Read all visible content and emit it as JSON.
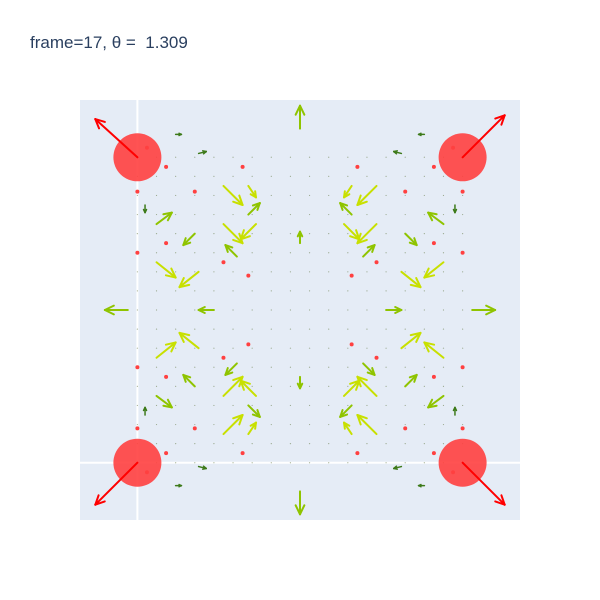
{
  "chart_data": {
    "type": "vector-field",
    "title": "frame=17, θ =  1.309",
    "xlim": [
      -0.3,
      2.0
    ],
    "ylim": [
      -0.3,
      1.9
    ],
    "grid": true,
    "zero_lines": true,
    "colors": {
      "plot_bg": "#e5ecf6",
      "grid": "#ffffff",
      "title": "#2a3f5f",
      "charge": "#ff4040",
      "charge_arrow": "#ff0000",
      "field_strong": "#c8e000",
      "field_mid": "#8fc400",
      "field_weak": "#3d7a1a"
    },
    "charges": [
      {
        "x": 0,
        "y": 0,
        "arrow": [
          -0.22,
          -0.22
        ]
      },
      {
        "x": 1.7,
        "y": 0,
        "arrow": [
          0.22,
          -0.22
        ]
      },
      {
        "x": 0,
        "y": 1.6,
        "arrow": [
          -0.22,
          0.2
        ]
      },
      {
        "x": 1.7,
        "y": 1.6,
        "arrow": [
          0.22,
          0.22
        ]
      }
    ],
    "field_arrows": [
      {
        "x": 0.85,
        "y": 1.75,
        "u": 0,
        "v": 0.12,
        "level": "mid"
      },
      {
        "x": 0.85,
        "y": 1.15,
        "u": 0,
        "v": 0.06,
        "level": "mid"
      },
      {
        "x": 0.85,
        "y": 0.45,
        "u": 0,
        "v": -0.06,
        "level": "mid"
      },
      {
        "x": 0.85,
        "y": -0.15,
        "u": 0,
        "v": -0.12,
        "level": "mid"
      },
      {
        "x": -0.05,
        "y": 0.8,
        "u": -0.12,
        "v": 0,
        "level": "mid"
      },
      {
        "x": 0.4,
        "y": 0.8,
        "u": -0.08,
        "v": 0,
        "level": "mid"
      },
      {
        "x": 1.3,
        "y": 0.8,
        "u": 0.08,
        "v": 0,
        "level": "mid"
      },
      {
        "x": 1.75,
        "y": 0.8,
        "u": 0.12,
        "v": 0,
        "level": "mid"
      },
      {
        "x": 0.45,
        "y": 1.45,
        "u": 0.1,
        "v": -0.1,
        "level": "strong"
      },
      {
        "x": 1.25,
        "y": 1.45,
        "u": -0.1,
        "v": -0.1,
        "level": "strong"
      },
      {
        "x": 0.45,
        "y": 0.15,
        "u": 0.1,
        "v": 0.1,
        "level": "strong"
      },
      {
        "x": 1.25,
        "y": 0.15,
        "u": -0.1,
        "v": 0.1,
        "level": "strong"
      },
      {
        "x": 0.45,
        "y": 1.25,
        "u": 0.1,
        "v": -0.1,
        "level": "strong"
      },
      {
        "x": 0.62,
        "y": 1.25,
        "u": -0.08,
        "v": -0.08,
        "level": "strong"
      },
      {
        "x": 1.08,
        "y": 1.25,
        "u": 0.08,
        "v": -0.08,
        "level": "strong"
      },
      {
        "x": 1.25,
        "y": 1.25,
        "u": -0.1,
        "v": -0.1,
        "level": "strong"
      },
      {
        "x": 0.45,
        "y": 0.35,
        "u": 0.1,
        "v": 0.1,
        "level": "strong"
      },
      {
        "x": 0.62,
        "y": 0.35,
        "u": -0.08,
        "v": 0.08,
        "level": "strong"
      },
      {
        "x": 1.08,
        "y": 0.35,
        "u": 0.08,
        "v": 0.08,
        "level": "strong"
      },
      {
        "x": 1.25,
        "y": 0.35,
        "u": -0.1,
        "v": 0.1,
        "level": "strong"
      },
      {
        "x": 0.1,
        "y": 1.05,
        "u": 0.1,
        "v": -0.08,
        "level": "strong"
      },
      {
        "x": 0.32,
        "y": 1.0,
        "u": -0.1,
        "v": -0.08,
        "level": "strong"
      },
      {
        "x": 1.38,
        "y": 1.0,
        "u": 0.1,
        "v": -0.08,
        "level": "strong"
      },
      {
        "x": 1.6,
        "y": 1.05,
        "u": -0.1,
        "v": -0.08,
        "level": "strong"
      },
      {
        "x": 0.1,
        "y": 0.55,
        "u": 0.1,
        "v": 0.08,
        "level": "strong"
      },
      {
        "x": 0.32,
        "y": 0.6,
        "u": -0.1,
        "v": 0.08,
        "level": "strong"
      },
      {
        "x": 1.38,
        "y": 0.6,
        "u": 0.1,
        "v": 0.08,
        "level": "strong"
      },
      {
        "x": 1.6,
        "y": 0.55,
        "u": -0.1,
        "v": 0.08,
        "level": "strong"
      },
      {
        "x": 0.1,
        "y": 1.25,
        "u": 0.08,
        "v": 0.06,
        "level": "mid"
      },
      {
        "x": 0.3,
        "y": 1.2,
        "u": -0.06,
        "v": -0.06,
        "level": "mid"
      },
      {
        "x": 1.4,
        "y": 1.2,
        "u": 0.06,
        "v": -0.06,
        "level": "mid"
      },
      {
        "x": 1.6,
        "y": 1.25,
        "u": -0.08,
        "v": 0.06,
        "level": "mid"
      },
      {
        "x": 0.1,
        "y": 0.35,
        "u": 0.08,
        "v": -0.06,
        "level": "mid"
      },
      {
        "x": 0.3,
        "y": 0.4,
        "u": -0.06,
        "v": 0.06,
        "level": "mid"
      },
      {
        "x": 1.4,
        "y": 0.4,
        "u": 0.06,
        "v": 0.06,
        "level": "mid"
      },
      {
        "x": 1.6,
        "y": 0.35,
        "u": -0.08,
        "v": -0.06,
        "level": "mid"
      },
      {
        "x": 0.58,
        "y": 1.3,
        "u": 0.06,
        "v": 0.06,
        "level": "mid"
      },
      {
        "x": 1.12,
        "y": 1.3,
        "u": -0.06,
        "v": 0.06,
        "level": "mid"
      },
      {
        "x": 0.58,
        "y": 0.3,
        "u": 0.06,
        "v": -0.06,
        "level": "mid"
      },
      {
        "x": 1.12,
        "y": 0.3,
        "u": -0.06,
        "v": -0.06,
        "level": "mid"
      },
      {
        "x": 0.52,
        "y": 1.08,
        "u": -0.06,
        "v": 0.06,
        "level": "mid"
      },
      {
        "x": 1.18,
        "y": 1.08,
        "u": 0.06,
        "v": 0.06,
        "level": "mid"
      },
      {
        "x": 0.52,
        "y": 0.52,
        "u": -0.06,
        "v": -0.06,
        "level": "mid"
      },
      {
        "x": 1.18,
        "y": 0.52,
        "u": 0.06,
        "v": -0.06,
        "level": "mid"
      },
      {
        "x": 0.58,
        "y": 0.15,
        "u": 0.04,
        "v": 0.06,
        "level": "strong"
      },
      {
        "x": 1.12,
        "y": 0.15,
        "u": -0.04,
        "v": 0.06,
        "level": "strong"
      },
      {
        "x": 0.58,
        "y": 1.45,
        "u": 0.04,
        "v": -0.06,
        "level": "strong"
      },
      {
        "x": 1.12,
        "y": 1.45,
        "u": -0.04,
        "v": -0.06,
        "level": "strong"
      },
      {
        "x": 0.32,
        "y": 1.62,
        "u": 0.04,
        "v": 0.01,
        "level": "weak"
      },
      {
        "x": 1.38,
        "y": 1.62,
        "u": -0.04,
        "v": 0.01,
        "level": "weak"
      },
      {
        "x": 0.32,
        "y": -0.02,
        "u": 0.04,
        "v": -0.01,
        "level": "weak"
      },
      {
        "x": 1.38,
        "y": -0.02,
        "u": -0.04,
        "v": -0.01,
        "level": "weak"
      },
      {
        "x": 0.04,
        "y": 1.35,
        "u": 0.0,
        "v": -0.04,
        "level": "weak"
      },
      {
        "x": 1.66,
        "y": 1.35,
        "u": 0.0,
        "v": -0.04,
        "level": "weak"
      },
      {
        "x": 0.04,
        "y": 0.25,
        "u": 0.0,
        "v": 0.04,
        "level": "weak"
      },
      {
        "x": 1.66,
        "y": 0.25,
        "u": 0.0,
        "v": 0.04,
        "level": "weak"
      },
      {
        "x": 0.2,
        "y": 1.72,
        "u": 0.03,
        "v": 0.0,
        "level": "weak"
      },
      {
        "x": 1.5,
        "y": 1.72,
        "u": -0.03,
        "v": 0.0,
        "level": "weak"
      },
      {
        "x": 0.2,
        "y": -0.12,
        "u": 0.03,
        "v": 0.0,
        "level": "weak"
      },
      {
        "x": 1.5,
        "y": -0.12,
        "u": -0.03,
        "v": 0.0,
        "level": "weak"
      }
    ],
    "red_dots": [
      {
        "x": 0.15,
        "y": 1.55
      },
      {
        "x": 1.55,
        "y": 1.55
      },
      {
        "x": 0.15,
        "y": 0.05
      },
      {
        "x": 1.55,
        "y": 0.05
      },
      {
        "x": 0.3,
        "y": 1.42
      },
      {
        "x": 1.4,
        "y": 1.42
      },
      {
        "x": 0.3,
        "y": 0.18
      },
      {
        "x": 1.4,
        "y": 0.18
      },
      {
        "x": 0.15,
        "y": 1.15
      },
      {
        "x": 1.55,
        "y": 1.15
      },
      {
        "x": 0.15,
        "y": 0.45
      },
      {
        "x": 1.55,
        "y": 0.45
      },
      {
        "x": 0.45,
        "y": 1.05
      },
      {
        "x": 1.25,
        "y": 1.05
      },
      {
        "x": 0.45,
        "y": 0.55
      },
      {
        "x": 1.25,
        "y": 0.55
      },
      {
        "x": 0.58,
        "y": 0.98
      },
      {
        "x": 1.12,
        "y": 0.98
      },
      {
        "x": 0.58,
        "y": 0.62
      },
      {
        "x": 1.12,
        "y": 0.62
      },
      {
        "x": 0.0,
        "y": 1.42
      },
      {
        "x": 1.7,
        "y": 1.42
      },
      {
        "x": 0.0,
        "y": 0.18
      },
      {
        "x": 1.7,
        "y": 0.18
      },
      {
        "x": 0.0,
        "y": 1.1
      },
      {
        "x": 1.7,
        "y": 1.1
      },
      {
        "x": 0.0,
        "y": 0.5
      },
      {
        "x": 1.7,
        "y": 0.5
      },
      {
        "x": 0.55,
        "y": 1.55
      },
      {
        "x": 1.15,
        "y": 1.55
      },
      {
        "x": 0.55,
        "y": 0.05
      },
      {
        "x": 1.15,
        "y": 0.05
      },
      {
        "x": 1.65,
        "y": 1.65
      },
      {
        "x": 0.05,
        "y": 1.65
      },
      {
        "x": 1.65,
        "y": -0.05
      },
      {
        "x": 0.05,
        "y": -0.05
      }
    ]
  }
}
